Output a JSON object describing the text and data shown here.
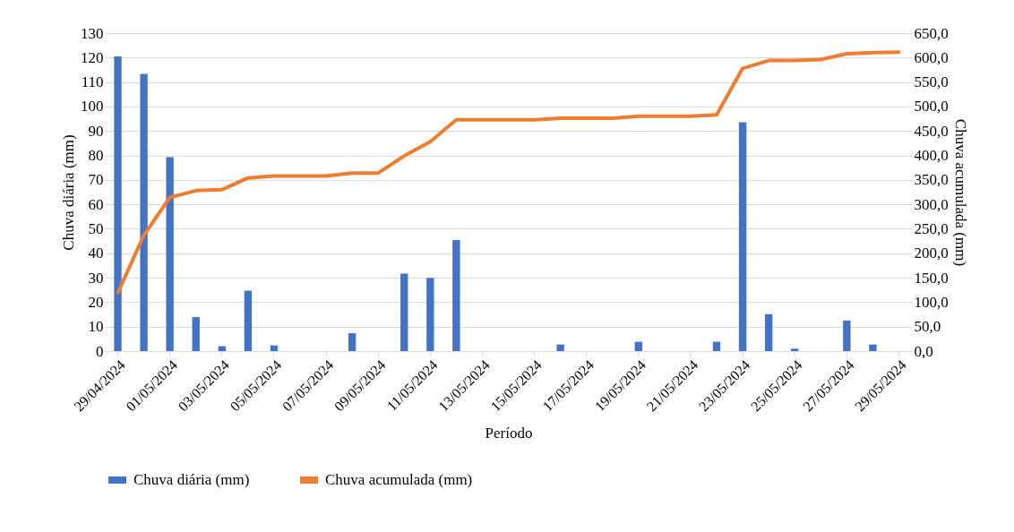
{
  "chart_data": {
    "type": "bar",
    "xlabel": "Período",
    "ylabel": "Chuva diária (mm)",
    "y2label": "Chuva acumulada (mm)",
    "categories": [
      "29/04/2024",
      null,
      "01/05/2024",
      null,
      "03/05/2024",
      null,
      "05/05/2024",
      null,
      "07/05/2024",
      null,
      "09/05/2024",
      null,
      "11/05/2024",
      null,
      "13/05/2024",
      null,
      "15/05/2024",
      null,
      "17/05/2024",
      null,
      "19/05/2024",
      null,
      "21/05/2024",
      null,
      "23/05/2024",
      null,
      "25/05/2024",
      null,
      "27/05/2024",
      null,
      "29/05/2024"
    ],
    "series": [
      {
        "name": "Chuva diária (mm)",
        "color": "#4472c4",
        "values": [
          120.5,
          113.3,
          79.3,
          13.9,
          2.0,
          24.7,
          2.3,
          0,
          0,
          7.3,
          0,
          31.7,
          29.9,
          45.4,
          0,
          0,
          0,
          2.7,
          0,
          0,
          3.8,
          0,
          0,
          3.8,
          93.6,
          15.1,
          1.0,
          0,
          12.5,
          2.7,
          0
        ]
      },
      {
        "name": "Chuva acumulada (mm)",
        "type": "line",
        "axis": "y2",
        "color": "#ed7d31",
        "values": [
          119,
          237,
          314,
          328,
          330,
          354,
          358,
          358,
          358,
          364,
          364,
          399,
          428,
          473,
          473,
          473,
          473,
          476,
          476,
          476,
          480,
          480,
          480,
          483,
          578,
          594,
          594,
          596,
          608,
          610,
          611
        ]
      }
    ],
    "ylim": [
      0,
      130
    ],
    "yticks": [
      0,
      10,
      20,
      30,
      40,
      50,
      60,
      70,
      80,
      90,
      100,
      110,
      120,
      130
    ],
    "y2lim": [
      0,
      650
    ],
    "y2ticks": [
      {
        "value": 0,
        "label": "0,0"
      },
      {
        "value": 50,
        "label": "50,0"
      },
      {
        "value": 100,
        "label": "100,0"
      },
      {
        "value": 150,
        "label": "150,0"
      },
      {
        "value": 200,
        "label": "200,0"
      },
      {
        "value": 250,
        "label": "250,0"
      },
      {
        "value": 300,
        "label": "300,0"
      },
      {
        "value": 350,
        "label": "350,0"
      },
      {
        "value": 400,
        "label": "400,0"
      },
      {
        "value": 450,
        "label": "450,0"
      },
      {
        "value": 500,
        "label": "500,0"
      },
      {
        "value": 550,
        "label": "550,0"
      },
      {
        "value": 600,
        "label": "600,0"
      },
      {
        "value": 650,
        "label": "650,0"
      }
    ],
    "grid": "y",
    "legend": "bottom"
  }
}
